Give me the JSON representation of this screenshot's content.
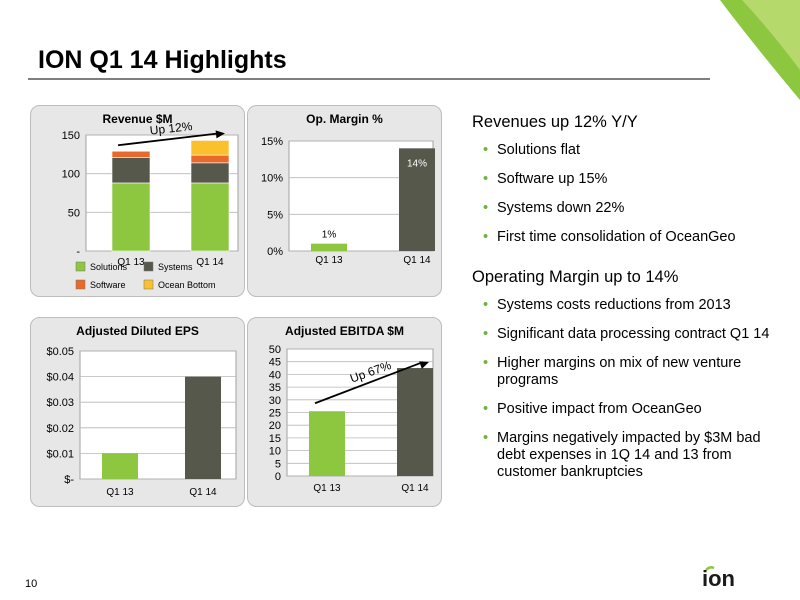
{
  "page": {
    "title": "ION Q1 14 Highlights",
    "page_number": "10",
    "logo_text": "ion"
  },
  "colors": {
    "green": "#8dc63f",
    "darkgray": "#55584a",
    "orange": "#e8692a",
    "yellow": "#fbc02d",
    "bullet": "#6cb33f",
    "panel_bg": "#e7e7e7"
  },
  "chart_data": [
    {
      "type": "bar",
      "stacked": true,
      "title": "Revenue $M",
      "categories": [
        "Q1 13",
        "Q1 14"
      ],
      "series": [
        {
          "name": "Solutions",
          "values": [
            88,
            88
          ]
        },
        {
          "name": "Systems",
          "values": [
            33,
            26
          ]
        },
        {
          "name": "Software",
          "values": [
            8,
            10
          ]
        },
        {
          "name": "Ocean Bottom",
          "values": [
            0,
            19
          ]
        }
      ],
      "yticks": [
        "150",
        "100",
        "50",
        "-"
      ],
      "ylim": [
        0,
        150
      ],
      "annotation": "Up 12%",
      "legend": "bottom",
      "grid": true
    },
    {
      "type": "bar",
      "title": "Op. Margin %",
      "categories": [
        "Q1 13",
        "Q1 14"
      ],
      "values": [
        1,
        14
      ],
      "data_labels": [
        "1%",
        "14%"
      ],
      "yticks": [
        "15%",
        "10%",
        "5%",
        "0%"
      ],
      "ylim": [
        0,
        15
      ],
      "grid": true
    },
    {
      "type": "bar",
      "title": "Adjusted Diluted EPS",
      "categories": [
        "Q1 13",
        "Q1 14"
      ],
      "values": [
        0.01,
        0.04
      ],
      "yticks": [
        "$0.05",
        "$0.04",
        "$0.03",
        "$0.02",
        "$0.01",
        "$-"
      ],
      "ylim": [
        0,
        0.05
      ],
      "grid": true
    },
    {
      "type": "bar",
      "title": "Adjusted  EBITDA $M",
      "categories": [
        "Q1 13",
        "Q1 14"
      ],
      "values": [
        25.5,
        42.5
      ],
      "yticks": [
        "50",
        "45",
        "40",
        "35",
        "30",
        "25",
        "20",
        "15",
        "10",
        "5",
        "0"
      ],
      "ylim": [
        0,
        50
      ],
      "annotation": "Up 67%",
      "grid": true
    }
  ],
  "right": {
    "revenue": {
      "heading": "Revenues up 12% Y/Y",
      "bullets": [
        "Solutions flat",
        "Software up 15%",
        "Systems down 22%",
        "First time consolidation of OceanGeo"
      ]
    },
    "margin": {
      "heading": "Operating Margin up to 14%",
      "bullets": [
        "Systems costs reductions from 2013",
        "Significant data processing contract Q1 14",
        "Higher margins on mix of new venture programs",
        "Positive impact from OceanGeo",
        "Margins negatively impacted by $3M bad debt expenses in 1Q 14 and 13 from customer bankruptcies"
      ]
    }
  }
}
